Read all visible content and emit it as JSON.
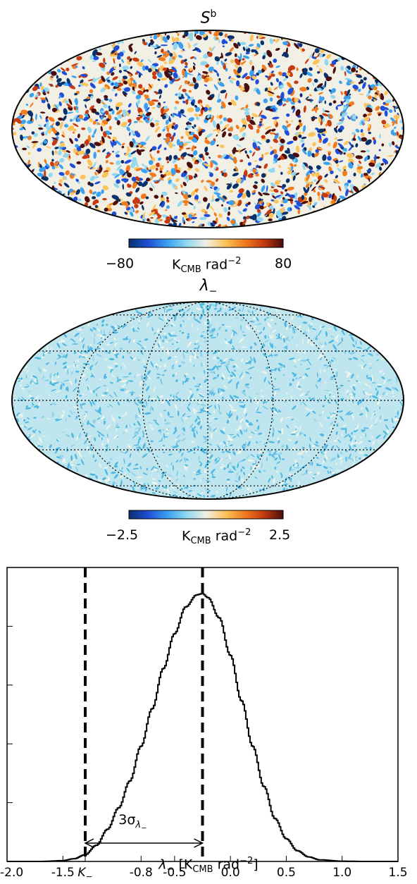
{
  "maps": [
    {
      "title": "S",
      "title_sup": "b",
      "colorbar": {
        "min_label": "−80",
        "unit_main": "K",
        "unit_sub": "CMB",
        "unit_rest": " rad",
        "unit_sup": "−2",
        "max_label": "80"
      },
      "graticule": false
    },
    {
      "title": "λ",
      "title_sub": "−",
      "colorbar": {
        "min_label": "−2.5",
        "unit_main": "K",
        "unit_sub": "CMB",
        "unit_rest": " rad",
        "unit_sup": "−2",
        "max_label": "2.5"
      },
      "graticule": true
    }
  ],
  "colormap": [
    "#08306b",
    "#1f4fd6",
    "#3aa0f0",
    "#8fd8f0",
    "#f2efe4",
    "#fbc35a",
    "#f07c1e",
    "#c53a10",
    "#4a0c0c"
  ],
  "chart_data": {
    "type": "line",
    "title": "",
    "xlabel": {
      "main": "λ",
      "sub": "−",
      "bracket_open": " [K",
      "unit_sub": "CMB",
      "rest": " rad",
      "sup": "−2",
      "bracket_close": "]"
    },
    "ylabel": "",
    "xlim": [
      -2.0,
      1.5
    ],
    "x_ticks": [
      {
        "value": -2.0,
        "label": "-2.0"
      },
      {
        "value": -1.5,
        "label": "-1.5"
      },
      {
        "value": -1.3,
        "label": "K",
        "sub": "−"
      },
      {
        "value": -0.8,
        "label": "-0.8"
      },
      {
        "value": -0.5,
        "label": "-0.5"
      },
      {
        "value": 0.0,
        "label": "0.0"
      },
      {
        "value": 0.5,
        "label": "0.5"
      },
      {
        "value": 1.0,
        "label": "1.0"
      },
      {
        "value": 1.5,
        "label": "1.5"
      }
    ],
    "grid": false,
    "series": [
      {
        "x": [
          -2.0,
          -1.7,
          -1.5,
          -1.4,
          -1.3,
          -1.2,
          -1.1,
          -1.0,
          -0.9,
          -0.8,
          -0.7,
          -0.6,
          -0.5,
          -0.4,
          -0.3,
          -0.25,
          -0.2,
          -0.1,
          0.0,
          0.1,
          0.2,
          0.3,
          0.4,
          0.5,
          0.6,
          0.7,
          0.8,
          1.0,
          1.2,
          1.5
        ],
        "y": [
          0.0,
          0.0,
          0.003,
          0.01,
          0.025,
          0.06,
          0.12,
          0.2,
          0.3,
          0.43,
          0.57,
          0.72,
          0.85,
          0.95,
          0.995,
          1.0,
          0.985,
          0.91,
          0.77,
          0.6,
          0.43,
          0.28,
          0.16,
          0.085,
          0.04,
          0.017,
          0.006,
          0.001,
          0.0,
          0.0
        ]
      }
    ],
    "vlines": [
      -1.3,
      -0.25
    ],
    "annotation": {
      "label": "3σ",
      "sub": "λ",
      "subsub": "−",
      "from": -1.3,
      "to": -0.25
    }
  }
}
